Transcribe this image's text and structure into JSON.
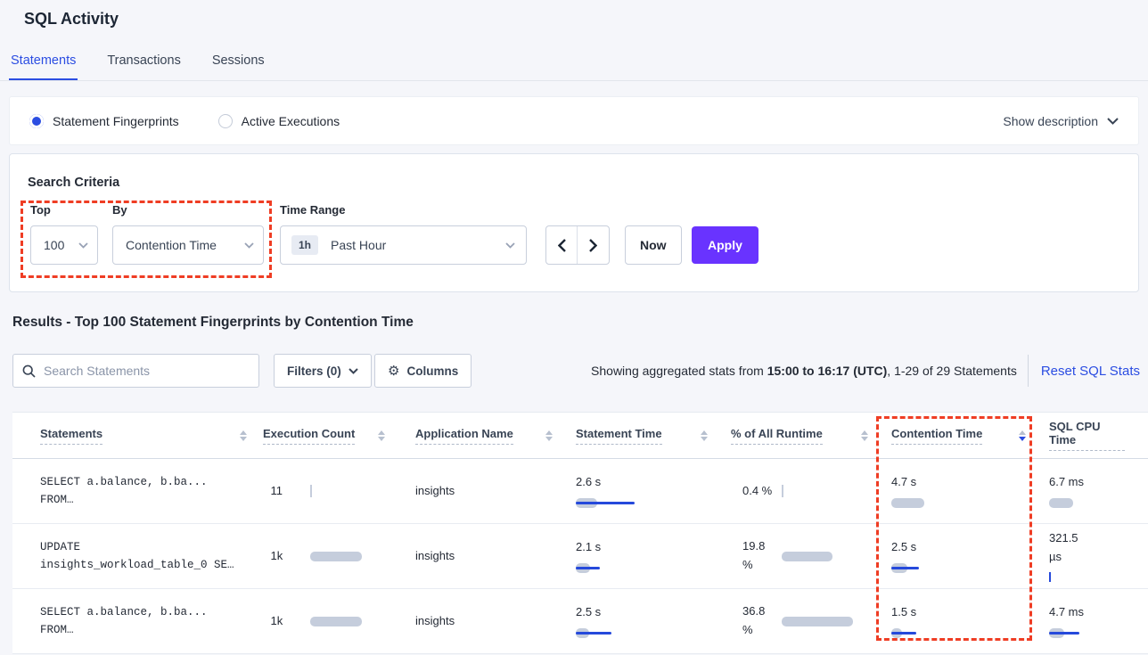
{
  "page": {
    "title": "SQL Activity"
  },
  "tabs": [
    {
      "label": "Statements",
      "active": true
    },
    {
      "label": "Transactions",
      "active": false
    },
    {
      "label": "Sessions",
      "active": false
    }
  ],
  "view_toggle": {
    "options": [
      {
        "label": "Statement Fingerprints",
        "selected": true
      },
      {
        "label": "Active Executions",
        "selected": false
      }
    ],
    "show_description_label": "Show description"
  },
  "search_criteria": {
    "heading": "Search Criteria",
    "top": {
      "label": "Top",
      "value": "100"
    },
    "by": {
      "label": "By",
      "value": "Contention Time"
    },
    "time_range": {
      "label": "Time Range",
      "badge": "1h",
      "value": "Past Hour"
    },
    "now_label": "Now",
    "apply_label": "Apply"
  },
  "results": {
    "heading": "Results - Top 100 Statement Fingerprints by Contention Time",
    "search_placeholder": "Search Statements",
    "filters_label": "Filters (0)",
    "columns_label": "Columns",
    "stats_prefix": "Showing aggregated stats from ",
    "stats_bold": "15:00 to 16:17 (UTC)",
    "stats_suffix": ", 1-29 of 29 Statements",
    "reset_label": "Reset SQL Stats"
  },
  "table": {
    "columns": [
      {
        "label": "Statements",
        "key": "statement",
        "type": "statement",
        "sort": "none"
      },
      {
        "label": "Execution Count",
        "key": "execution_count",
        "type": "hmetric",
        "sort": "none"
      },
      {
        "label": "Application Name",
        "key": "application",
        "type": "text",
        "sort": "none"
      },
      {
        "label": "Statement Time",
        "key": "statement_time",
        "type": "vmetric",
        "sort": "none"
      },
      {
        "label": "% of All Runtime",
        "key": "runtime",
        "type": "hmetric",
        "sort": "none"
      },
      {
        "label": "Contention Time",
        "key": "contention",
        "type": "vmetric",
        "sort": "desc"
      },
      {
        "label": "SQL CPU Time",
        "key": "cpu",
        "type": "vmetric",
        "sort": "hidden"
      }
    ],
    "rows": [
      {
        "statement": {
          "lines": [
            "SELECT a.balance, b.ba...",
            "FROM…"
          ]
        },
        "execution_count": {
          "lines": [
            "11"
          ],
          "bar": {
            "kind": "tick"
          }
        },
        "application": "insights",
        "statement_time": {
          "lines": [
            "2.6 s"
          ],
          "bar": {
            "kind": "rect",
            "gray_w": 24,
            "line_w": 66
          }
        },
        "runtime": {
          "lines": [
            "0.4 %"
          ],
          "bar": {
            "kind": "tick"
          }
        },
        "contention": {
          "lines": [
            "4.7 s"
          ],
          "bar": {
            "kind": "rect",
            "gray_w": 37,
            "line_w": 0
          }
        },
        "cpu": {
          "lines": [
            "6.7 ms"
          ],
          "bar": {
            "kind": "rect",
            "gray_w": 27,
            "line_w": 0
          }
        }
      },
      {
        "statement": {
          "lines": [
            "UPDATE",
            "insights_workload_table_0 SE…"
          ]
        },
        "execution_count": {
          "lines": [
            "1k"
          ],
          "bar": {
            "kind": "rect",
            "gray_w": 58,
            "line_w": 0
          }
        },
        "application": "insights",
        "statement_time": {
          "lines": [
            "2.1 s"
          ],
          "bar": {
            "kind": "rect",
            "gray_w": 16,
            "line_w": 27
          }
        },
        "runtime": {
          "lines": [
            "19.8",
            "%"
          ],
          "bar": {
            "kind": "rect",
            "gray_w": 57,
            "line_w": 0
          }
        },
        "contention": {
          "lines": [
            "2.5 s"
          ],
          "bar": {
            "kind": "rect",
            "gray_w": 18,
            "line_w": 31
          }
        },
        "cpu": {
          "lines": [
            "321.5",
            "µs"
          ],
          "bar": {
            "kind": "blue-tick"
          }
        }
      },
      {
        "statement": {
          "lines": [
            "SELECT a.balance, b.ba...",
            "FROM…"
          ]
        },
        "execution_count": {
          "lines": [
            "1k"
          ],
          "bar": {
            "kind": "rect",
            "gray_w": 58,
            "line_w": 0
          }
        },
        "application": "insights",
        "statement_time": {
          "lines": [
            "2.5 s"
          ],
          "bar": {
            "kind": "rect",
            "gray_w": 15,
            "line_w": 40
          }
        },
        "runtime": {
          "lines": [
            "36.8",
            "%"
          ],
          "bar": {
            "kind": "rect",
            "gray_w": 80,
            "line_w": 0
          }
        },
        "contention": {
          "lines": [
            "1.5 s"
          ],
          "bar": {
            "kind": "rect",
            "gray_w": 12,
            "line_w": 28
          }
        },
        "cpu": {
          "lines": [
            "4.7 ms"
          ],
          "bar": {
            "kind": "rect",
            "gray_w": 17,
            "line_w": 34
          }
        }
      }
    ]
  },
  "colors": {
    "accent_blue": "#2b4de2",
    "apply_purple": "#6933ff",
    "highlight_red": "#ef3d24",
    "bar_gray": "#c5cddc",
    "bar_blue": "#2549db"
  }
}
